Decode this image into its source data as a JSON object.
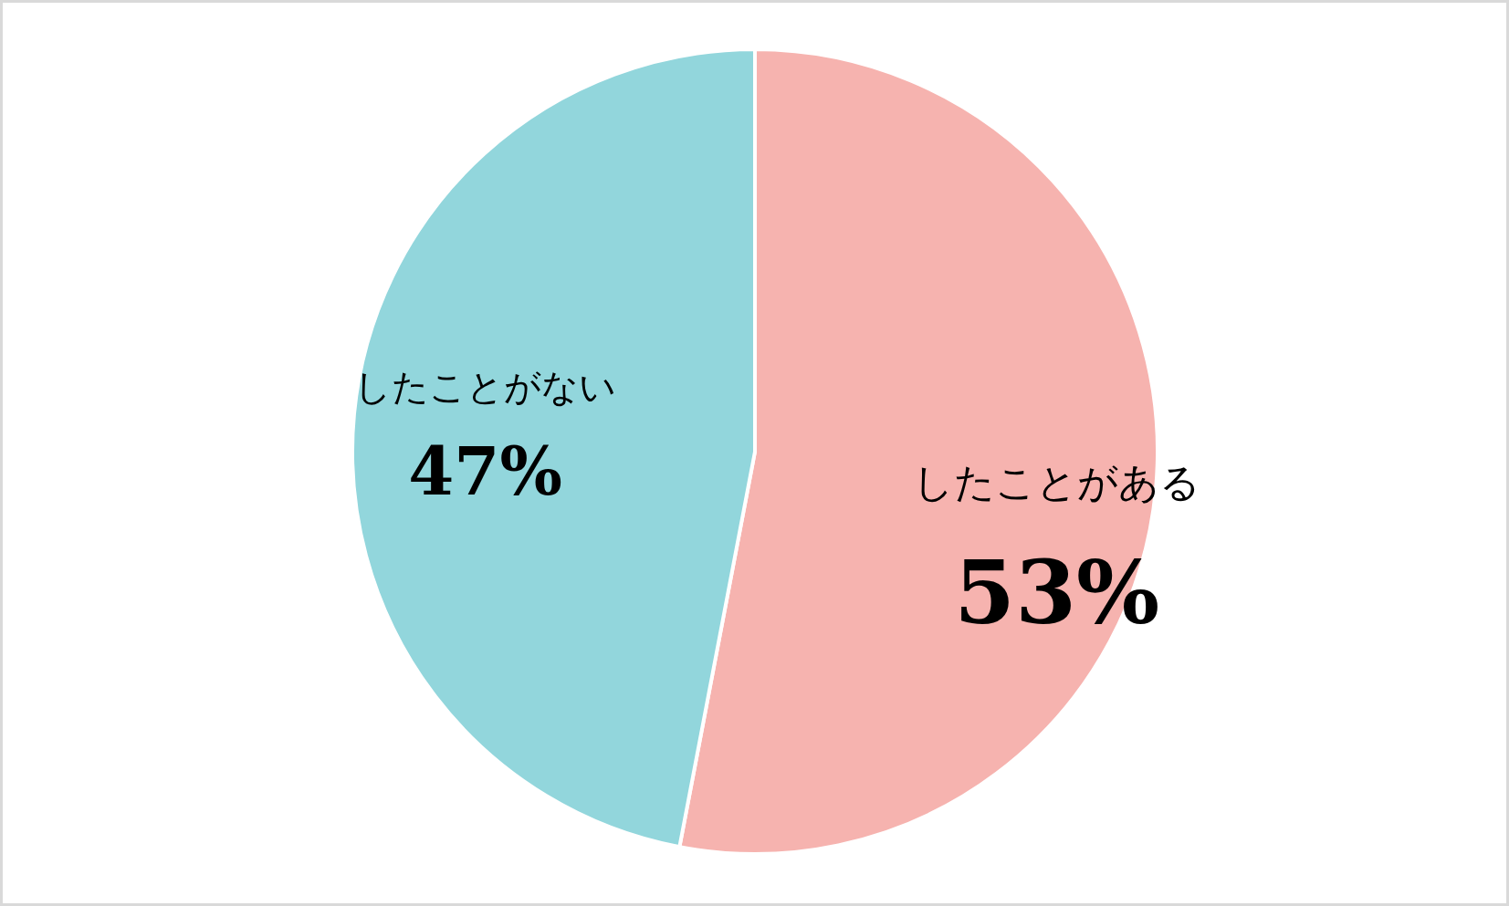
{
  "chart_data": {
    "type": "pie",
    "categories": [
      "したことがある",
      "したことがない"
    ],
    "values": [
      53,
      47
    ],
    "colors": [
      "#f6b3af",
      "#92d6dc"
    ],
    "value_labels": [
      "53%",
      "47%"
    ]
  }
}
